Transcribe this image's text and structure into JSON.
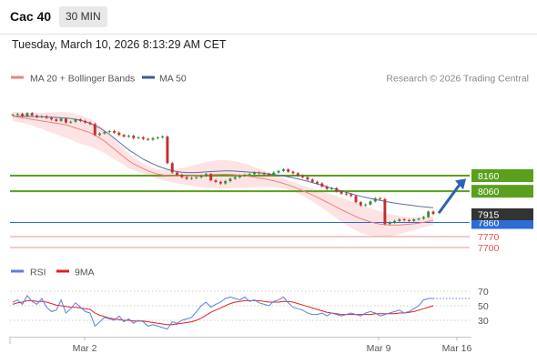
{
  "header": {
    "instrument": "Cac 40",
    "timeframe": "30 MIN",
    "datetime": "Tuesday, March 10, 2026 8:13:29 AM CET"
  },
  "legend": {
    "ma20": "MA 20 + Bollinger Bands",
    "ma50": "MA 50",
    "copyright": "Research © 2026 Trading Central",
    "rsi": "RSI",
    "rsi_ma": "9MA"
  },
  "colors": {
    "green_level": "#5aa01e",
    "blue_level": "#2b6cd6",
    "red_level": "#f09090",
    "ma20": "#f08080",
    "ma50": "#5b6fa8",
    "band_fill": "#fde0e0",
    "up_candle": "#3a8a3a",
    "down_candle": "#c03030",
    "rsi_line": "#5b7fdc",
    "rsi_ma_line": "#e02020",
    "arrow": "#2a62b6",
    "last_price_bg": "#333333"
  },
  "chart_data": {
    "type": "candlestick",
    "y_range": [
      7680,
      8260
    ],
    "levels": [
      {
        "label": "8160",
        "value": 8160,
        "kind": "resistance"
      },
      {
        "label": "8060",
        "value": 8060,
        "kind": "resistance"
      },
      {
        "label": "7860",
        "value": 7860,
        "kind": "pivot"
      },
      {
        "label": "7770",
        "value": 7770,
        "kind": "support"
      },
      {
        "label": "7700",
        "value": 7700,
        "kind": "support"
      }
    ],
    "last_price": "7915",
    "arrow": {
      "from": 7920,
      "to": 8140,
      "direction": "up"
    },
    "x_ticks": [
      "Mar 2",
      "Mar 9",
      "Mar 16"
    ],
    "close": [
      8550,
      8555,
      8540,
      8560,
      8545,
      8535,
      8540,
      8530,
      8520,
      8510,
      8525,
      8500,
      8505,
      8520,
      8510,
      8500,
      8490,
      8420,
      8430,
      8440,
      8445,
      8435,
      8420,
      8410,
      8415,
      8400,
      8405,
      8395,
      8390,
      8400,
      8405,
      8410,
      8240,
      8180,
      8165,
      8150,
      8140,
      8145,
      8150,
      8160,
      8170,
      8130,
      8120,
      8110,
      8125,
      8140,
      8150,
      8160,
      8165,
      8170,
      8180,
      8175,
      8170,
      8165,
      8180,
      8190,
      8200,
      8185,
      8175,
      8160,
      8150,
      8135,
      8120,
      8110,
      8090,
      8075,
      8080,
      8060,
      8045,
      8040,
      8030,
      7990,
      7970,
      7975,
      7995,
      8015,
      8010,
      7850,
      7860,
      7870,
      7880,
      7875,
      7870,
      7880,
      7885,
      7895,
      7930,
      7915
    ],
    "ma20": [
      8540,
      8535,
      8530,
      8525,
      8520,
      8515,
      8510,
      8505,
      8500,
      8495,
      8490,
      8485,
      8475,
      8465,
      8455,
      8445,
      8435,
      8420,
      8400,
      8380,
      8355,
      8330,
      8305,
      8280,
      8255,
      8235,
      8220,
      8205,
      8190,
      8180,
      8170,
      8165,
      8160,
      8158,
      8157,
      8157,
      8157,
      8158,
      8160,
      8162,
      8165,
      8167,
      8168,
      8169,
      8169,
      8168,
      8166,
      8163,
      8159,
      8155,
      8150,
      8145,
      8140,
      8134,
      8127,
      8119,
      8110,
      8100,
      8089,
      8077,
      8064,
      8050,
      8036,
      8021,
      8006,
      7990,
      7974,
      7958,
      7942,
      7927,
      7912,
      7898,
      7885,
      7874,
      7864,
      7856,
      7850,
      7846,
      7844,
      7843,
      7844,
      7846,
      7849,
      7852,
      7856,
      7861,
      7867,
      7873
    ],
    "ma50": [
      8540,
      8540,
      8540,
      8540,
      8538,
      8537,
      8536,
      8535,
      8534,
      8532,
      8530,
      8528,
      8525,
      8520,
      8515,
      8505,
      8495,
      8480,
      8465,
      8445,
      8425,
      8400,
      8375,
      8350,
      8325,
      8305,
      8285,
      8265,
      8250,
      8235,
      8222,
      8210,
      8200,
      8192,
      8186,
      8182,
      8180,
      8180,
      8180,
      8182,
      8184,
      8186,
      8188,
      8189,
      8190,
      8190,
      8189,
      8187,
      8185,
      8183,
      8181,
      8178,
      8175,
      8171,
      8167,
      8163,
      8158,
      8152,
      8146,
      8139,
      8132,
      8124,
      8116,
      8107,
      8098,
      8089,
      8080,
      8071,
      8062,
      8053,
      8044,
      8036,
      8028,
      8021,
      8014,
      8007,
      8001,
      7995,
      7990,
      7985,
      7980,
      7976,
      7972,
      7968,
      7964,
      7961,
      7958,
      7955
    ],
    "rsi_ticks": [
      70,
      50,
      30
    ],
    "rsi": [
      55,
      58,
      52,
      64,
      56,
      52,
      60,
      48,
      42,
      44,
      58,
      40,
      46,
      54,
      48,
      42,
      40,
      22,
      28,
      34,
      32,
      30,
      36,
      28,
      32,
      26,
      30,
      28,
      22,
      24,
      22,
      20,
      18,
      28,
      26,
      30,
      32,
      34,
      42,
      50,
      55,
      48,
      52,
      55,
      60,
      62,
      60,
      58,
      62,
      56,
      58,
      54,
      52,
      50,
      56,
      58,
      62,
      54,
      48,
      46,
      44,
      40,
      38,
      38,
      40,
      36,
      40,
      38,
      36,
      38,
      40,
      38,
      36,
      40,
      42,
      40,
      36,
      38,
      40,
      42,
      44,
      40,
      42,
      46,
      50,
      58,
      60,
      60
    ],
    "rsi_ma": [
      52,
      54,
      55,
      57,
      57,
      56,
      56,
      55,
      53,
      51,
      50,
      49,
      48,
      48,
      47,
      46,
      45,
      40,
      37,
      35,
      33,
      32,
      31,
      30,
      30,
      29,
      29,
      29,
      28,
      27,
      26,
      25,
      24,
      24,
      25,
      26,
      27,
      28,
      30,
      33,
      37,
      41,
      44,
      47,
      50,
      53,
      55,
      56,
      57,
      57,
      57,
      57,
      56,
      55,
      55,
      55,
      56,
      56,
      55,
      53,
      51,
      49,
      47,
      45,
      43,
      41,
      40,
      39,
      38,
      38,
      38,
      38,
      38,
      38,
      38,
      39,
      39,
      39,
      39,
      39,
      40,
      40,
      41,
      42,
      44,
      46,
      48,
      50
    ]
  }
}
